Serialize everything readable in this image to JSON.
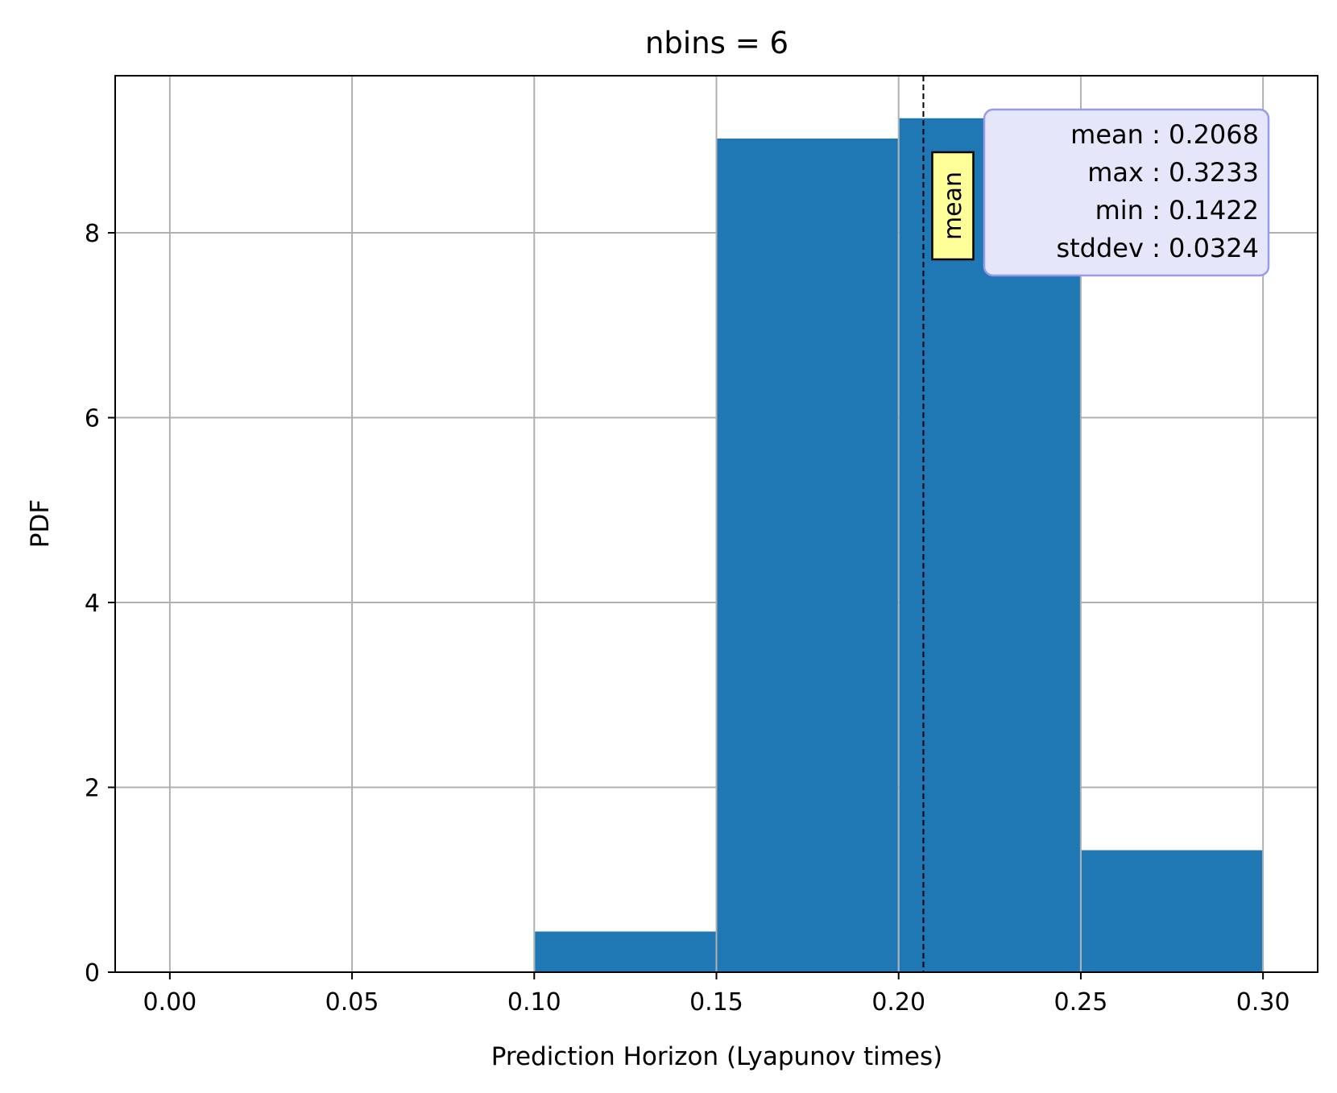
{
  "chart_data": {
    "type": "bar",
    "title": "nbins = 6",
    "xlabel": "Prediction Horizon (Lyapunov times)",
    "ylabel": "PDF",
    "xlim": [
      -0.015,
      0.315
    ],
    "ylim": [
      0,
      9.7
    ],
    "grid": true,
    "bar_color": "#1f77b4",
    "bins": [
      {
        "x0": 0.0,
        "x1": 0.05,
        "value": 0.0
      },
      {
        "x0": 0.05,
        "x1": 0.1,
        "value": 0.0
      },
      {
        "x0": 0.1,
        "x1": 0.15,
        "value": 0.44
      },
      {
        "x0": 0.15,
        "x1": 0.2,
        "value": 9.02
      },
      {
        "x0": 0.2,
        "x1": 0.25,
        "value": 9.24
      },
      {
        "x0": 0.25,
        "x1": 0.3,
        "value": 1.32
      }
    ],
    "xticks": [
      0.0,
      0.05,
      0.1,
      0.15,
      0.2,
      0.25,
      0.3
    ],
    "xtick_labels": [
      "0.00",
      "0.05",
      "0.10",
      "0.15",
      "0.20",
      "0.25",
      "0.30"
    ],
    "yticks": [
      0,
      2,
      4,
      6,
      8
    ],
    "ytick_labels": [
      "0",
      "2",
      "4",
      "6",
      "8"
    ],
    "mean_line": {
      "x": 0.2068,
      "label": "mean",
      "label_bg": "#ffff99"
    },
    "stats_box": {
      "placement": "top-right",
      "bg": "#e6e6fa",
      "border": "#9999ee",
      "lines": [
        "mean : 0.2068",
        "max : 0.3233",
        "min : 0.1422",
        "stddev : 0.0324"
      ]
    }
  }
}
